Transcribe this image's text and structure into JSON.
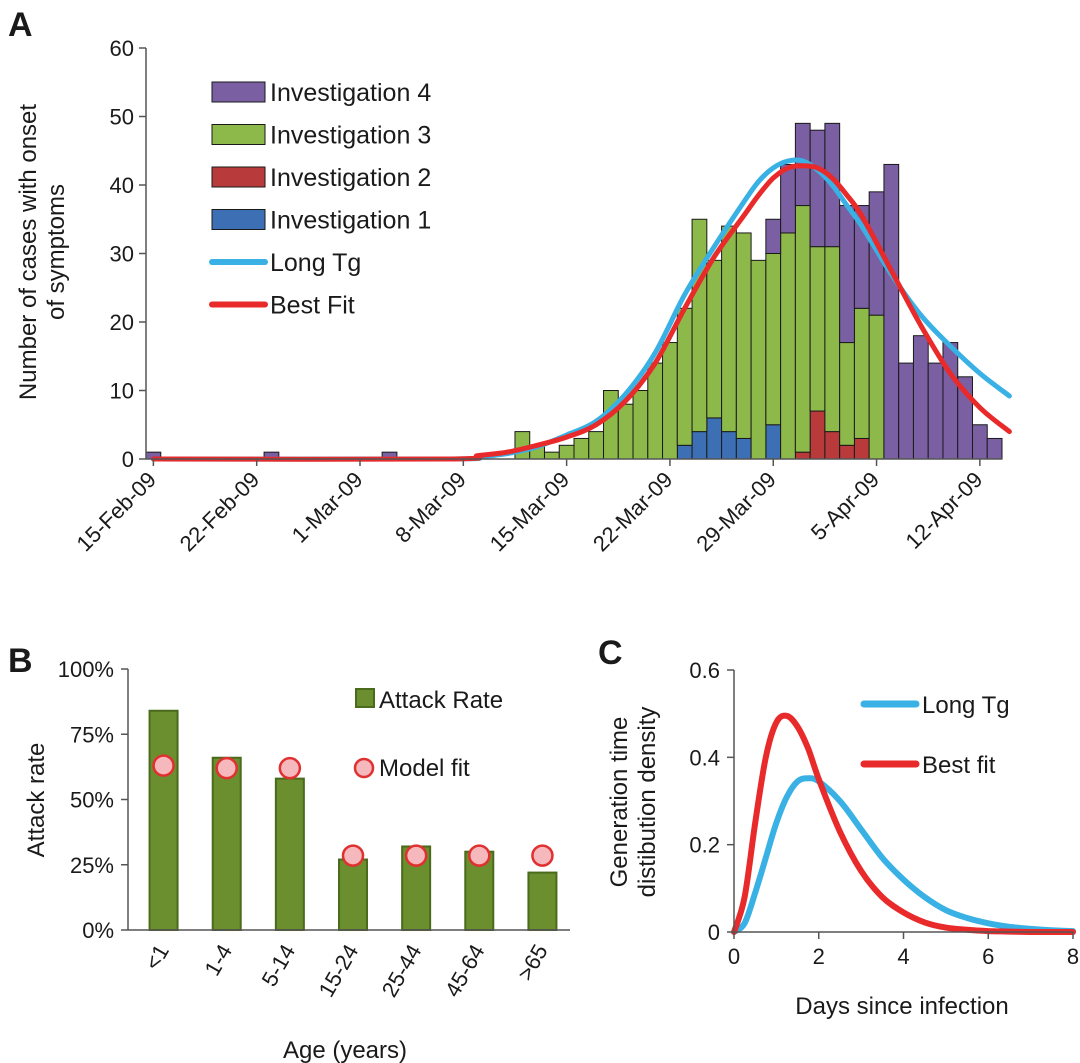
{
  "chart_data": [
    {
      "panel": "A",
      "type": "bar",
      "stacked": true,
      "ylabel": "Number of cases with onset of symptoms",
      "ylim": [
        0,
        60
      ],
      "yticks": [
        "0",
        "10",
        "20",
        "30",
        "40",
        "50",
        "60"
      ],
      "xticks": [
        "15-Feb-09",
        "22-Feb-09",
        "1-Mar-09",
        "8-Mar-09",
        "15-Mar-09",
        "22-Mar-09",
        "29-Mar-09",
        "5-Apr-09",
        "12-Apr-09"
      ],
      "x_range_days_from_15_feb": [
        -0.5,
        57.5
      ],
      "bars": {
        "day_index": [
          0,
          1,
          2,
          3,
          4,
          5,
          6,
          7,
          8,
          9,
          10,
          11,
          12,
          13,
          14,
          15,
          16,
          17,
          18,
          19,
          20,
          21,
          22,
          23,
          24,
          25,
          26,
          27,
          28,
          29,
          30,
          31,
          32,
          33,
          34,
          35,
          36,
          37,
          38,
          39,
          40,
          41,
          42,
          43,
          44,
          45,
          46,
          47,
          48,
          49,
          50,
          51,
          52,
          53,
          54,
          55,
          56,
          57
        ],
        "series": [
          {
            "name": "Investigation 1",
            "color": "#3d6fb5",
            "values": [
              0,
              0,
              0,
              0,
              0,
              0,
              0,
              0,
              0,
              0,
              0,
              0,
              0,
              0,
              0,
              0,
              0,
              0,
              0,
              0,
              0,
              0,
              0,
              0,
              0,
              0,
              0,
              0,
              0,
              0,
              0,
              0,
              0,
              0,
              0,
              0,
              2,
              4,
              6,
              4,
              3,
              0,
              5,
              0,
              0,
              0,
              0,
              0,
              0,
              0,
              0,
              0,
              0,
              0,
              0,
              0,
              0,
              0
            ]
          },
          {
            "name": "Investigation 2",
            "color": "#b93a3a",
            "values": [
              0,
              0,
              0,
              0,
              0,
              0,
              0,
              0,
              0,
              0,
              0,
              0,
              0,
              0,
              0,
              0,
              0,
              0,
              0,
              0,
              0,
              0,
              0,
              0,
              0,
              0,
              0,
              0,
              0,
              0,
              0,
              0,
              0,
              0,
              0,
              0,
              0,
              0,
              0,
              0,
              0,
              0,
              0,
              0,
              1,
              7,
              4,
              2,
              3,
              0,
              0,
              0,
              0,
              0,
              0,
              0,
              0,
              0
            ]
          },
          {
            "name": "Investigation 3",
            "color": "#8db84a",
            "values": [
              0,
              0,
              0,
              0,
              0,
              0,
              0,
              0,
              0,
              0,
              0,
              0,
              0,
              0,
              0,
              0,
              0,
              0,
              0,
              0,
              0,
              0,
              0,
              0,
              0,
              4,
              2,
              1,
              2,
              3,
              4,
              10,
              8,
              10,
              14,
              17,
              20,
              31,
              23,
              30,
              30,
              29,
              25,
              33,
              36,
              24,
              27,
              15,
              19,
              21,
              0,
              0,
              0,
              0,
              0,
              0,
              0,
              0
            ]
          },
          {
            "name": "Investigation 4",
            "color": "#7a5fa3",
            "values": [
              1,
              0,
              0,
              0,
              0,
              0,
              0,
              0,
              1,
              0,
              0,
              0,
              0,
              0,
              0,
              0,
              1,
              0,
              0,
              0,
              0,
              0,
              0,
              0,
              0,
              0,
              0,
              0,
              0,
              0,
              0,
              0,
              0,
              0,
              0,
              0,
              0,
              0,
              0,
              0,
              0,
              0,
              5,
              10,
              12,
              17,
              18,
              20,
              15,
              18,
              43,
              14,
              18,
              14,
              17,
              12,
              5,
              3
            ]
          }
        ]
      },
      "lines": [
        {
          "name": "Long Tg",
          "color": "#39b1e4",
          "x": [
            0,
            20,
            22,
            24,
            26,
            28,
            30,
            32,
            34,
            36,
            38,
            40,
            41,
            42,
            43,
            44,
            45,
            46,
            47,
            48,
            50,
            52,
            54,
            56,
            58,
            60
          ],
          "y": [
            0,
            0,
            0.3,
            0.8,
            1.8,
            3.5,
            5.5,
            9.5,
            15.5,
            24,
            31,
            37.5,
            40.5,
            42.5,
            43.5,
            43.5,
            42.2,
            40,
            37,
            34,
            27,
            21,
            16.5,
            12.5,
            9.2,
            6.2
          ]
        },
        {
          "name": "Best Fit",
          "color": "#e82a2a",
          "x": [
            0,
            20,
            22,
            24,
            26,
            28,
            30,
            32,
            34,
            36,
            38,
            40,
            41,
            42,
            43,
            44,
            45,
            46,
            47,
            48,
            50,
            52,
            54,
            56,
            58,
            60
          ],
          "y": [
            0,
            0,
            0.5,
            1,
            2,
            3.2,
            5,
            8.5,
            14,
            22,
            29.5,
            35.5,
            38.5,
            41,
            42.5,
            42.8,
            42.5,
            41,
            38.5,
            35.5,
            27.5,
            19.5,
            12.5,
            7.5,
            4,
            2
          ]
        }
      ],
      "legend": [
        "Investigation 4",
        "Investigation 3",
        "Investigation 2",
        "Investigation 1",
        "Long Tg",
        "Best Fit"
      ],
      "legend_position": "top-left"
    },
    {
      "panel": "B",
      "type": "bar",
      "xlabel": "Age (years)",
      "ylabel": "Attack rate",
      "ylim": [
        0,
        100
      ],
      "yticks": [
        "0%",
        "25%",
        "50%",
        "75%",
        "100%"
      ],
      "categories": [
        "<1",
        "1-4",
        "5-14",
        "15-24",
        "25-44",
        "45-64",
        ">65"
      ],
      "series": [
        {
          "name": "Attack Rate",
          "color": "#6b8e2f",
          "values": [
            84,
            66,
            58,
            27,
            32,
            30,
            22
          ]
        },
        {
          "name": "Model fit",
          "color": "#f4b8bd",
          "values": [
            63,
            62,
            62,
            28.5,
            28.5,
            28.5,
            28.5
          ]
        }
      ],
      "legend_position": "top-right"
    },
    {
      "panel": "C",
      "type": "line",
      "xlabel": "Days since infection",
      "ylabel": "Generation time distibution density",
      "xlim": [
        0,
        8
      ],
      "ylim": [
        0,
        0.6
      ],
      "xticks": [
        "0",
        "2",
        "4",
        "6",
        "8"
      ],
      "yticks": [
        "0",
        "0.2",
        "0.4",
        "0.6"
      ],
      "series": [
        {
          "name": "Long Tg",
          "color": "#39b1e4",
          "x": [
            0,
            0.25,
            0.5,
            0.75,
            1,
            1.25,
            1.5,
            1.75,
            2,
            2.5,
            3,
            3.5,
            4,
            4.5,
            5,
            5.5,
            6,
            6.5,
            7,
            7.5,
            8
          ],
          "y": [
            0,
            0.02,
            0.09,
            0.17,
            0.25,
            0.31,
            0.345,
            0.352,
            0.345,
            0.3,
            0.235,
            0.17,
            0.12,
            0.08,
            0.05,
            0.032,
            0.02,
            0.012,
            0.007,
            0.004,
            0.002
          ]
        },
        {
          "name": "Best fit",
          "color": "#e82a2a",
          "x": [
            0,
            0.25,
            0.5,
            0.75,
            1,
            1.25,
            1.5,
            1.75,
            2,
            2.5,
            3,
            3.5,
            4,
            4.5,
            5,
            5.5,
            6,
            6.5,
            7,
            7.5,
            8
          ],
          "y": [
            0,
            0.08,
            0.25,
            0.4,
            0.48,
            0.495,
            0.47,
            0.42,
            0.35,
            0.23,
            0.14,
            0.08,
            0.045,
            0.022,
            0.01,
            0.005,
            0.002,
            0.001,
            0,
            0,
            0
          ]
        }
      ],
      "legend_position": "top-right"
    }
  ],
  "panels": {
    "a_letter": "A",
    "b_letter": "B",
    "c_letter": "C"
  }
}
